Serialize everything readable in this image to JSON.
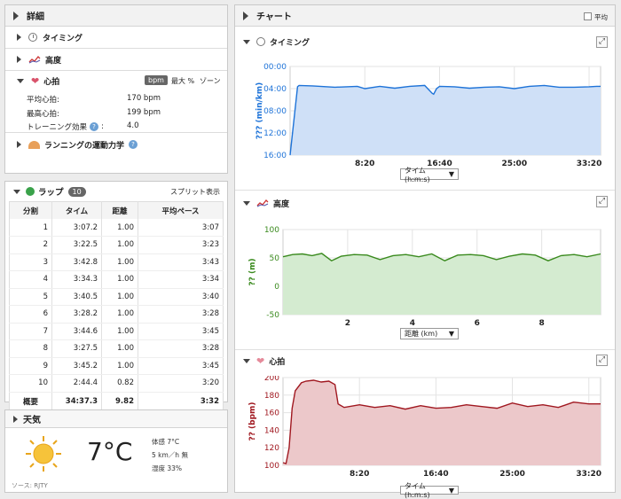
{
  "details": {
    "title": "詳細",
    "timing_label": "タイミング",
    "elevation_label": "高度",
    "heart_rate": {
      "label": "心拍",
      "unit_bpm": "bpm",
      "unit_pct_max": "最大 %",
      "unit_zone": "ゾーン",
      "avg_label": "平均心拍:",
      "avg_value": "170 bpm",
      "max_label": "最高心拍:",
      "max_value": "199 bpm",
      "te_label": "トレーニング効果",
      "te_colon": ":",
      "te_value": "4.0"
    },
    "dynamics_label": "ランニングの運動力学"
  },
  "laps": {
    "title": "ラップ",
    "count": "10",
    "split_link": "スプリット表示",
    "headers": [
      "分割",
      "タイム",
      "距離",
      "平均ペース"
    ],
    "rows": [
      [
        "1",
        "3:07.2",
        "1.00",
        "3:07"
      ],
      [
        "2",
        "3:22.5",
        "1.00",
        "3:23"
      ],
      [
        "3",
        "3:42.8",
        "1.00",
        "3:43"
      ],
      [
        "4",
        "3:34.3",
        "1.00",
        "3:34"
      ],
      [
        "5",
        "3:40.5",
        "1.00",
        "3:40"
      ],
      [
        "6",
        "3:28.2",
        "1.00",
        "3:28"
      ],
      [
        "7",
        "3:44.6",
        "1.00",
        "3:45"
      ],
      [
        "8",
        "3:27.5",
        "1.00",
        "3:28"
      ],
      [
        "9",
        "3:45.2",
        "1.00",
        "3:45"
      ],
      [
        "10",
        "2:44.4",
        "0.82",
        "3:20"
      ]
    ],
    "summary": [
      "概要",
      "34:37.3",
      "9.82",
      "3:32"
    ]
  },
  "weather": {
    "title": "天気",
    "temp": "7°C",
    "feels": "体感 7°C",
    "wind": "5 km／h 無",
    "humidity": "湿度 33%",
    "source": "ソース: RJTY"
  },
  "charts_panel": {
    "title": "チャート",
    "avg_checkbox_label": "平均",
    "avg_checked": false
  },
  "chart_data": [
    {
      "type": "area",
      "title": "タイミング",
      "ylabel": "??? (min/km)",
      "xlabel": "",
      "x_select": "タイム (h:m:s)",
      "y_ticks": [
        "00:00",
        "04:00",
        "08:00",
        "12:00",
        "16:00"
      ],
      "y_min_sec": 0,
      "y_max_sec": 960,
      "y_inverted": true,
      "x_ticks": [
        "8:20",
        "16:40",
        "25:00",
        "33:20"
      ],
      "x_min_sec": 0,
      "x_max_sec": 2077,
      "color": "#1e73d8",
      "fill": "#cfe0f7",
      "x": [
        0,
        50,
        60,
        150,
        300,
        450,
        500,
        600,
        700,
        800,
        900,
        950,
        960,
        980,
        1000,
        1100,
        1200,
        1300,
        1400,
        1500,
        1600,
        1700,
        1800,
        1900,
        2000,
        2050,
        2077
      ],
      "values": [
        960,
        220,
        205,
        210,
        225,
        215,
        240,
        215,
        235,
        215,
        205,
        290,
        300,
        240,
        215,
        220,
        235,
        225,
        220,
        240,
        215,
        205,
        225,
        225,
        220,
        215,
        215
      ]
    },
    {
      "type": "area",
      "title": "高度",
      "ylabel": "?? (m)",
      "xlabel": "",
      "x_select": "距離 (km)",
      "y_ticks": [
        "100",
        "50",
        "0",
        "-50"
      ],
      "y_min": -50,
      "y_max": 100,
      "x_ticks": [
        "2",
        "4",
        "6",
        "8"
      ],
      "x_min": 0,
      "x_max": 9.82,
      "color": "#3a8a1e",
      "fill": "#d4ebd0",
      "x": [
        0,
        0.3,
        0.6,
        0.9,
        1.2,
        1.5,
        1.8,
        2.2,
        2.6,
        3.0,
        3.4,
        3.8,
        4.2,
        4.6,
        5.0,
        5.4,
        5.8,
        6.2,
        6.6,
        7.0,
        7.4,
        7.8,
        8.2,
        8.6,
        9.0,
        9.4,
        9.82
      ],
      "values": [
        52,
        56,
        57,
        54,
        58,
        45,
        53,
        56,
        55,
        47,
        54,
        56,
        52,
        57,
        45,
        55,
        56,
        54,
        47,
        53,
        57,
        55,
        45,
        54,
        56,
        52,
        57
      ]
    },
    {
      "type": "area",
      "title": "心拍",
      "ylabel": "?? (bpm)",
      "xlabel": "",
      "x_select": "タイム (h:m:s)",
      "y_ticks": [
        "200",
        "180",
        "160",
        "140",
        "120",
        "100"
      ],
      "y_min": 100,
      "y_max": 200,
      "x_ticks": [
        "8:20",
        "16:40",
        "25:00",
        "33:20"
      ],
      "x_min_sec": 0,
      "x_max_sec": 2077,
      "color": "#a01820",
      "fill": "#ecc8ca",
      "x": [
        0,
        20,
        40,
        60,
        80,
        120,
        150,
        200,
        250,
        300,
        340,
        360,
        400,
        500,
        600,
        700,
        800,
        900,
        1000,
        1100,
        1200,
        1300,
        1400,
        1500,
        1600,
        1700,
        1800,
        1900,
        2000,
        2077
      ],
      "values": [
        103,
        102,
        120,
        165,
        185,
        194,
        196,
        197,
        195,
        196,
        192,
        170,
        166,
        169,
        166,
        168,
        164,
        168,
        165,
        166,
        169,
        167,
        165,
        171,
        167,
        169,
        166,
        172,
        170,
        170
      ]
    }
  ]
}
